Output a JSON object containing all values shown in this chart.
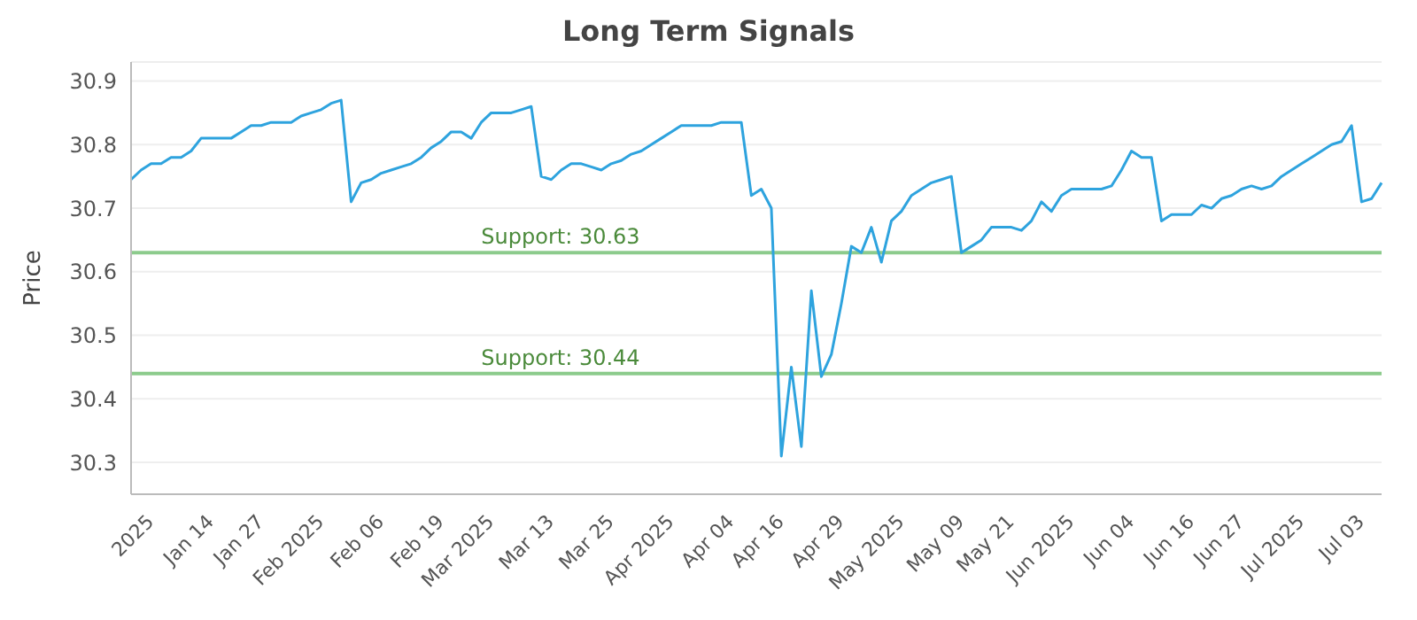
{
  "chart_data": {
    "type": "line",
    "title": "Long Term Signals",
    "ylabel": "Price",
    "categories": [
      null,
      null,
      "2025",
      null,
      null,
      null,
      null,
      null,
      "Jan 14",
      null,
      null,
      null,
      null,
      "Jan 27",
      null,
      null,
      null,
      null,
      null,
      "Feb 2025",
      null,
      null,
      null,
      null,
      null,
      "Feb 06",
      null,
      null,
      null,
      null,
      null,
      "Feb 19",
      null,
      null,
      null,
      null,
      "Mar 2025",
      null,
      null,
      null,
      null,
      null,
      "Mar 13",
      null,
      null,
      null,
      null,
      null,
      "Mar 25",
      null,
      null,
      null,
      null,
      null,
      "Apr 2025",
      null,
      null,
      null,
      null,
      null,
      "Apr 04",
      null,
      null,
      null,
      null,
      "Apr 16",
      null,
      null,
      null,
      null,
      null,
      "Apr 29",
      null,
      null,
      null,
      null,
      null,
      "May 2025",
      null,
      null,
      null,
      null,
      null,
      "May 09",
      null,
      null,
      null,
      null,
      "May 21",
      null,
      null,
      null,
      null,
      null,
      "Jun 2025",
      null,
      null,
      null,
      null,
      null,
      "Jun 04",
      null,
      null,
      null,
      null,
      null,
      "Jun 16",
      null,
      null,
      null,
      null,
      "Jun 27",
      null,
      null,
      null,
      null,
      null,
      "Jul 2025",
      null,
      null,
      null,
      null,
      null,
      "Jul 03",
      null,
      null
    ],
    "series": [
      {
        "color": "#2ea3de",
        "values": [
          30.745,
          30.76,
          30.77,
          30.77,
          30.78,
          30.78,
          30.79,
          30.81,
          30.81,
          30.81,
          30.81,
          30.82,
          30.83,
          30.83,
          30.835,
          30.835,
          30.835,
          30.845,
          30.85,
          30.855,
          30.865,
          30.87,
          30.71,
          30.74,
          30.745,
          30.755,
          30.76,
          30.765,
          30.77,
          30.78,
          30.795,
          30.805,
          30.82,
          30.82,
          30.81,
          30.835,
          30.85,
          30.85,
          30.85,
          30.855,
          30.86,
          30.75,
          30.745,
          30.76,
          30.77,
          30.77,
          30.765,
          30.76,
          30.77,
          30.775,
          30.785,
          30.79,
          30.8,
          30.81,
          30.82,
          30.83,
          30.83,
          30.83,
          30.83,
          30.835,
          30.835,
          30.835,
          30.72,
          30.73,
          30.7,
          30.31,
          30.45,
          30.325,
          30.57,
          30.435,
          30.47,
          30.55,
          30.64,
          30.63,
          30.67,
          30.615,
          30.68,
          30.695,
          30.72,
          30.73,
          30.74,
          30.745,
          30.75,
          30.63,
          30.64,
          30.65,
          30.67,
          30.67,
          30.67,
          30.665,
          30.68,
          30.71,
          30.695,
          30.72,
          30.73,
          30.73,
          30.73,
          30.73,
          30.735,
          30.76,
          30.79,
          30.78,
          30.78,
          30.68,
          30.69,
          30.69,
          30.69,
          30.705,
          30.7,
          30.715,
          30.72,
          30.73,
          30.735,
          30.73,
          30.735,
          30.75,
          30.76,
          30.77,
          30.78,
          30.79,
          30.8,
          30.805,
          30.83,
          30.71,
          30.715,
          30.74
        ]
      }
    ],
    "ylim": [
      30.25,
      30.93
    ],
    "yticks": [
      30.3,
      30.4,
      30.5,
      30.6,
      30.7,
      30.8,
      30.9
    ],
    "grid": "y",
    "marker": "none",
    "line_style": "solid",
    "ref_lines": [
      {
        "axis": "y",
        "value": 30.63,
        "label": "Support: 30.63",
        "color": "#8ccb8c"
      },
      {
        "axis": "y",
        "value": 30.44,
        "label": "Support: 30.44",
        "color": "#8ccb8c"
      }
    ]
  }
}
